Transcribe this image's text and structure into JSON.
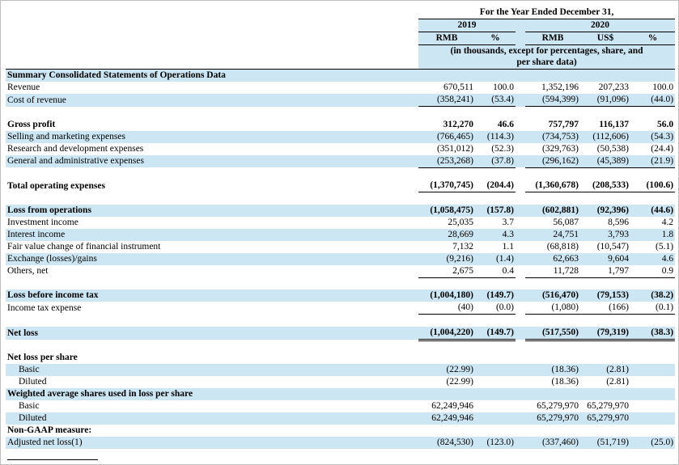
{
  "colors": {
    "row_shade": "#cde6f3",
    "text": "#000000",
    "rule": "#000000",
    "page_border": "#bfbfbf"
  },
  "header": {
    "title": "For the Year Ended December 31,",
    "years": [
      {
        "label": "2019"
      },
      {
        "label": "2020"
      }
    ],
    "columns_2019": [
      "RMB",
      "%"
    ],
    "columns_2020": [
      "RMB",
      "US$",
      "%"
    ],
    "note": [
      "(in thousands, except for percentages, share, and",
      "per share data)"
    ]
  },
  "rows": [
    {
      "type": "section",
      "label": "Summary Consolidated Statements of Operations Data",
      "bold": true,
      "shaded": true,
      "topBorder": true
    },
    {
      "type": "data",
      "label": "Revenue",
      "values": [
        "670,511",
        "100.0",
        "1,352,196",
        "207,233",
        "100.0"
      ]
    },
    {
      "type": "data",
      "label": "Cost of revenue",
      "values": [
        "(358,241)",
        "(53.4)",
        "(594,399)",
        "(91,096)",
        "(44.0)"
      ],
      "shaded": true,
      "underline": "single"
    },
    {
      "type": "spacer"
    },
    {
      "type": "data",
      "label": "Gross profit",
      "bold": true,
      "values": [
        "312,270",
        "46.6",
        "757,797",
        "116,137",
        "56.0"
      ]
    },
    {
      "type": "data",
      "label": "Selling and marketing expenses",
      "values": [
        "(766,465)",
        "(114.3)",
        "(734,753)",
        "(112,606)",
        "(54.3)"
      ],
      "shaded": true
    },
    {
      "type": "data",
      "label": "Research and development expenses",
      "values": [
        "(351,012)",
        "(52.3)",
        "(329,763)",
        "(50,538)",
        "(24.4)"
      ]
    },
    {
      "type": "data",
      "label": "General and administrative expenses",
      "values": [
        "(253,268)",
        "(37.8)",
        "(296,162)",
        "(45,389)",
        "(21.9)"
      ],
      "shaded": true,
      "underline": "single"
    },
    {
      "type": "spacer"
    },
    {
      "type": "data",
      "label": "Total operating expenses",
      "bold": true,
      "values": [
        "(1,370,745)",
        "(204.4)",
        "(1,360,678)",
        "(208,533)",
        "(100.6)"
      ],
      "underline": "single"
    },
    {
      "type": "spacer"
    },
    {
      "type": "data",
      "label": "Loss from operations",
      "bold": true,
      "values": [
        "(1,058,475)",
        "(157.8)",
        "(602,881)",
        "(92,396)",
        "(44.6)"
      ],
      "shaded": true
    },
    {
      "type": "data",
      "label": "Investment income",
      "values": [
        "25,035",
        "3.7",
        "56,087",
        "8,596",
        "4.2"
      ]
    },
    {
      "type": "data",
      "label": "Interest income",
      "values": [
        "28,669",
        "4.3",
        "24,751",
        "3,793",
        "1.8"
      ],
      "shaded": true
    },
    {
      "type": "data",
      "label": "Fair value change of financial instrument",
      "values": [
        "7,132",
        "1.1",
        "(68,818)",
        "(10,547)",
        "(5.1)"
      ]
    },
    {
      "type": "data",
      "label": "Exchange (losses)/gains",
      "values": [
        "(9,216)",
        "(1.4)",
        "62,663",
        "9,604",
        "4.6"
      ],
      "shaded": true
    },
    {
      "type": "data",
      "label": "Others, net",
      "values": [
        "2,675",
        "0.4",
        "11,728",
        "1,797",
        "0.9"
      ],
      "underline": "single"
    },
    {
      "type": "spacer"
    },
    {
      "type": "data",
      "label": "Loss before income tax",
      "bold": true,
      "values": [
        "(1,004,180)",
        "(149.7)",
        "(516,470)",
        "(79,153)",
        "(38.2)"
      ],
      "shaded": true
    },
    {
      "type": "data",
      "label": "Income tax expense",
      "values": [
        "(40)",
        "(0.0)",
        "(1,080)",
        "(166)",
        "(0.1)"
      ],
      "underline": "single"
    },
    {
      "type": "spacer"
    },
    {
      "type": "data",
      "label": "Net loss",
      "bold": true,
      "values": [
        "(1,004,220)",
        "(149.7)",
        "(517,550)",
        "(79,319)",
        "(38.3)"
      ],
      "shaded": true,
      "underline": "double"
    },
    {
      "type": "spacer"
    },
    {
      "type": "section",
      "label": "Net loss per share",
      "bold": true
    },
    {
      "type": "data",
      "label": "Basic",
      "indent": true,
      "values": [
        "(22.99)",
        "",
        "(18.36)",
        "(2.81)",
        ""
      ],
      "shaded": true
    },
    {
      "type": "data",
      "label": "Diluted",
      "indent": true,
      "values": [
        "(22.99)",
        "",
        "(18.36)",
        "(2.81)",
        ""
      ]
    },
    {
      "type": "section",
      "label": "Weighted average shares used in loss per share",
      "bold": true,
      "shaded": true
    },
    {
      "type": "data",
      "label": "Basic",
      "indent": true,
      "values": [
        "62,249,946",
        "",
        "65,279,970",
        "65,279,970",
        ""
      ]
    },
    {
      "type": "data",
      "label": "Diluted",
      "indent": true,
      "values": [
        "62,249,946",
        "",
        "65,279,970",
        "65,279,970",
        ""
      ],
      "shaded": true
    },
    {
      "type": "section",
      "label": "Non-GAAP measure:",
      "bold": true
    },
    {
      "type": "data",
      "label": "Adjusted net loss(1)",
      "values": [
        "(824,530)",
        "(123.0)",
        "(337,460)",
        "(51,719)",
        "(25.0)"
      ],
      "shaded": true
    }
  ]
}
